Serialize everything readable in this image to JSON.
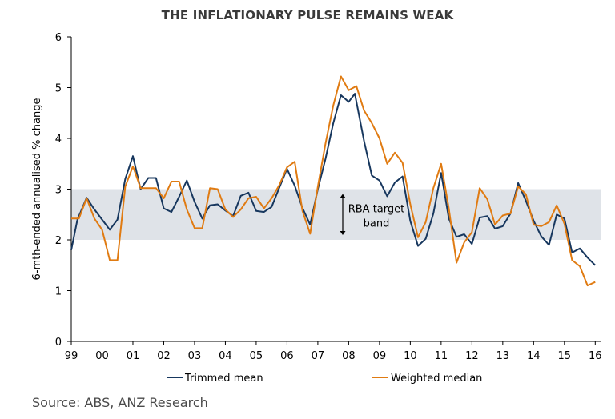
{
  "title": "THE INFLATIONARY PULSE REMAINS WEAK",
  "source": "Source: ABS, ANZ Research",
  "colors": {
    "trimmed_mean": "#17375e",
    "weighted_median": "#e07b12",
    "band_fill": "#dfe3e8",
    "axis": "#000000"
  },
  "chart_data": {
    "type": "line",
    "title": "THE INFLATIONARY PULSE REMAINS WEAK",
    "xlabel": "",
    "ylabel": "6-mth-ended annualised % change",
    "xlim": [
      1999,
      2016.2
    ],
    "ylim": [
      0,
      6
    ],
    "y_ticks": [
      "0",
      "1",
      "2",
      "3",
      "4",
      "5",
      "6"
    ],
    "x_ticks": [
      "99",
      "00",
      "01",
      "02",
      "03",
      "04",
      "05",
      "06",
      "07",
      "08",
      "09",
      "10",
      "11",
      "12",
      "13",
      "14",
      "15",
      "16"
    ],
    "band": {
      "label_line1": "RBA target",
      "label_line2": "band",
      "from": 2,
      "to": 3
    },
    "legend_position": "bottom",
    "grid": false,
    "series": [
      {
        "name": "Trimmed mean",
        "x": [
          1999.0,
          1999.2,
          1999.5,
          1999.75,
          2000.0,
          2000.25,
          2000.5,
          2000.75,
          2001.0,
          2001.25,
          2001.5,
          2001.75,
          2002.0,
          2002.25,
          2002.5,
          2002.75,
          2003.0,
          2003.25,
          2003.5,
          2003.75,
          2004.0,
          2004.25,
          2004.5,
          2004.75,
          2005.0,
          2005.25,
          2005.5,
          2005.75,
          2006.0,
          2006.25,
          2006.5,
          2006.75,
          2007.0,
          2007.25,
          2007.5,
          2007.75,
          2008.0,
          2008.2,
          2008.5,
          2008.75,
          2009.0,
          2009.25,
          2009.5,
          2009.75,
          2010.0,
          2010.25,
          2010.5,
          2010.75,
          2011.0,
          2011.25,
          2011.5,
          2011.75,
          2012.0,
          2012.25,
          2012.5,
          2012.75,
          2013.0,
          2013.25,
          2013.5,
          2013.75,
          2014.0,
          2014.25,
          2014.5,
          2014.75,
          2015.0,
          2015.25,
          2015.5,
          2015.75,
          2016.0
        ],
        "values": [
          1.8,
          2.4,
          2.83,
          2.6,
          2.4,
          2.2,
          2.4,
          3.2,
          3.65,
          3.0,
          3.22,
          3.22,
          2.62,
          2.55,
          2.85,
          3.17,
          2.75,
          2.42,
          2.68,
          2.7,
          2.58,
          2.47,
          2.87,
          2.93,
          2.57,
          2.55,
          2.65,
          3.03,
          3.4,
          3.07,
          2.63,
          2.3,
          3.0,
          3.6,
          4.3,
          4.85,
          4.72,
          4.88,
          3.95,
          3.27,
          3.17,
          2.86,
          3.13,
          3.25,
          2.37,
          1.88,
          2.02,
          2.52,
          3.32,
          2.42,
          2.06,
          2.11,
          1.92,
          2.44,
          2.47,
          2.22,
          2.27,
          2.52,
          3.12,
          2.77,
          2.38,
          2.07,
          1.9,
          2.5,
          2.42,
          1.75,
          1.83,
          1.65,
          1.5
        ]
      },
      {
        "name": "Weighted median",
        "x": [
          1999.0,
          1999.25,
          1999.5,
          1999.75,
          2000.0,
          2000.25,
          2000.5,
          2000.75,
          2001.0,
          2001.25,
          2001.5,
          2001.75,
          2002.0,
          2002.25,
          2002.5,
          2002.75,
          2003.0,
          2003.25,
          2003.5,
          2003.75,
          2004.0,
          2004.25,
          2004.5,
          2004.75,
          2005.0,
          2005.25,
          2005.5,
          2005.75,
          2006.0,
          2006.25,
          2006.5,
          2006.75,
          2007.0,
          2007.25,
          2007.5,
          2007.75,
          2008.0,
          2008.25,
          2008.5,
          2008.75,
          2009.0,
          2009.25,
          2009.5,
          2009.75,
          2010.0,
          2010.25,
          2010.5,
          2010.75,
          2011.0,
          2011.25,
          2011.5,
          2011.75,
          2012.0,
          2012.25,
          2012.5,
          2012.75,
          2013.0,
          2013.25,
          2013.5,
          2013.75,
          2014.0,
          2014.25,
          2014.5,
          2014.75,
          2015.0,
          2015.25,
          2015.5,
          2015.75,
          2016.0
        ],
        "values": [
          2.42,
          2.42,
          2.82,
          2.42,
          2.2,
          1.6,
          1.6,
          3.05,
          3.45,
          3.02,
          3.02,
          3.02,
          2.82,
          3.15,
          3.15,
          2.6,
          2.23,
          2.23,
          3.02,
          3.0,
          2.6,
          2.45,
          2.6,
          2.82,
          2.85,
          2.62,
          2.82,
          3.08,
          3.43,
          3.54,
          2.57,
          2.12,
          3.05,
          3.9,
          4.65,
          5.22,
          4.95,
          5.03,
          4.55,
          4.3,
          4.0,
          3.5,
          3.72,
          3.52,
          2.7,
          2.05,
          2.35,
          3.02,
          3.5,
          2.62,
          1.55,
          1.95,
          2.15,
          3.02,
          2.8,
          2.3,
          2.48,
          2.52,
          3.05,
          2.9,
          2.3,
          2.27,
          2.35,
          2.68,
          2.32,
          1.6,
          1.48,
          1.1,
          1.17
        ]
      }
    ]
  }
}
